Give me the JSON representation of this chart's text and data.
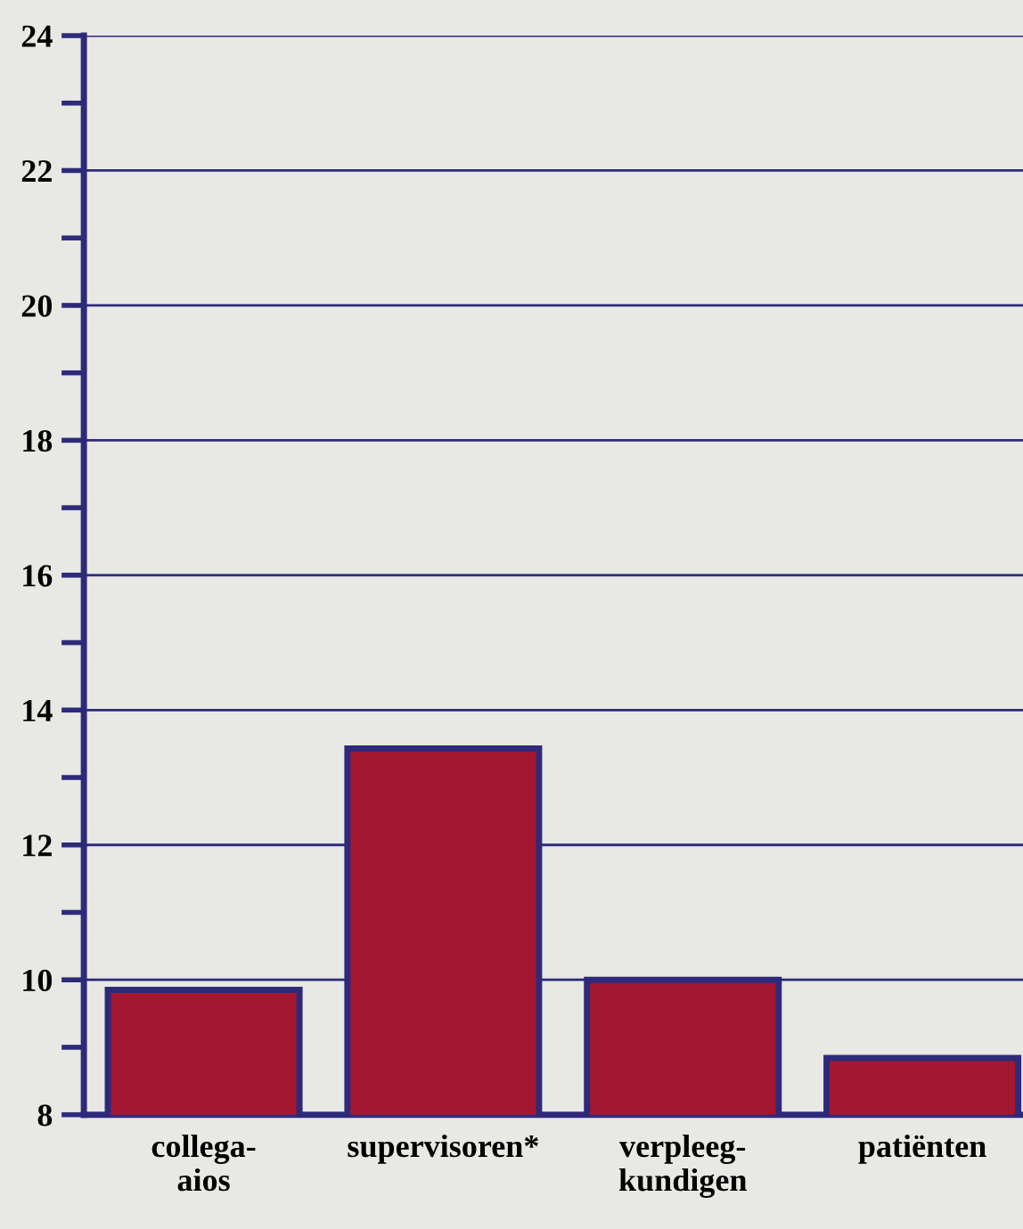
{
  "chart_data": {
    "type": "bar",
    "categories": [
      "collega-\naios",
      "supervisoren*",
      "verpleeg-\nkundigen",
      "patiënten"
    ],
    "values": [
      9.85,
      13.43,
      10.0,
      8.84
    ],
    "color": "#a41730",
    "ylim": [
      8,
      24
    ],
    "yticks": [
      8,
      {
        "value": 9,
        "label": null
      },
      10,
      {
        "value": 11,
        "label": null
      },
      12,
      {
        "value": 13,
        "label": null
      },
      14,
      {
        "value": 15,
        "label": null
      },
      16,
      {
        "value": 17,
        "label": null
      },
      18,
      {
        "value": 19,
        "label": null
      },
      20,
      {
        "value": 21,
        "label": null
      },
      22,
      {
        "value": 23,
        "label": null
      },
      24
    ],
    "grid": "y"
  }
}
